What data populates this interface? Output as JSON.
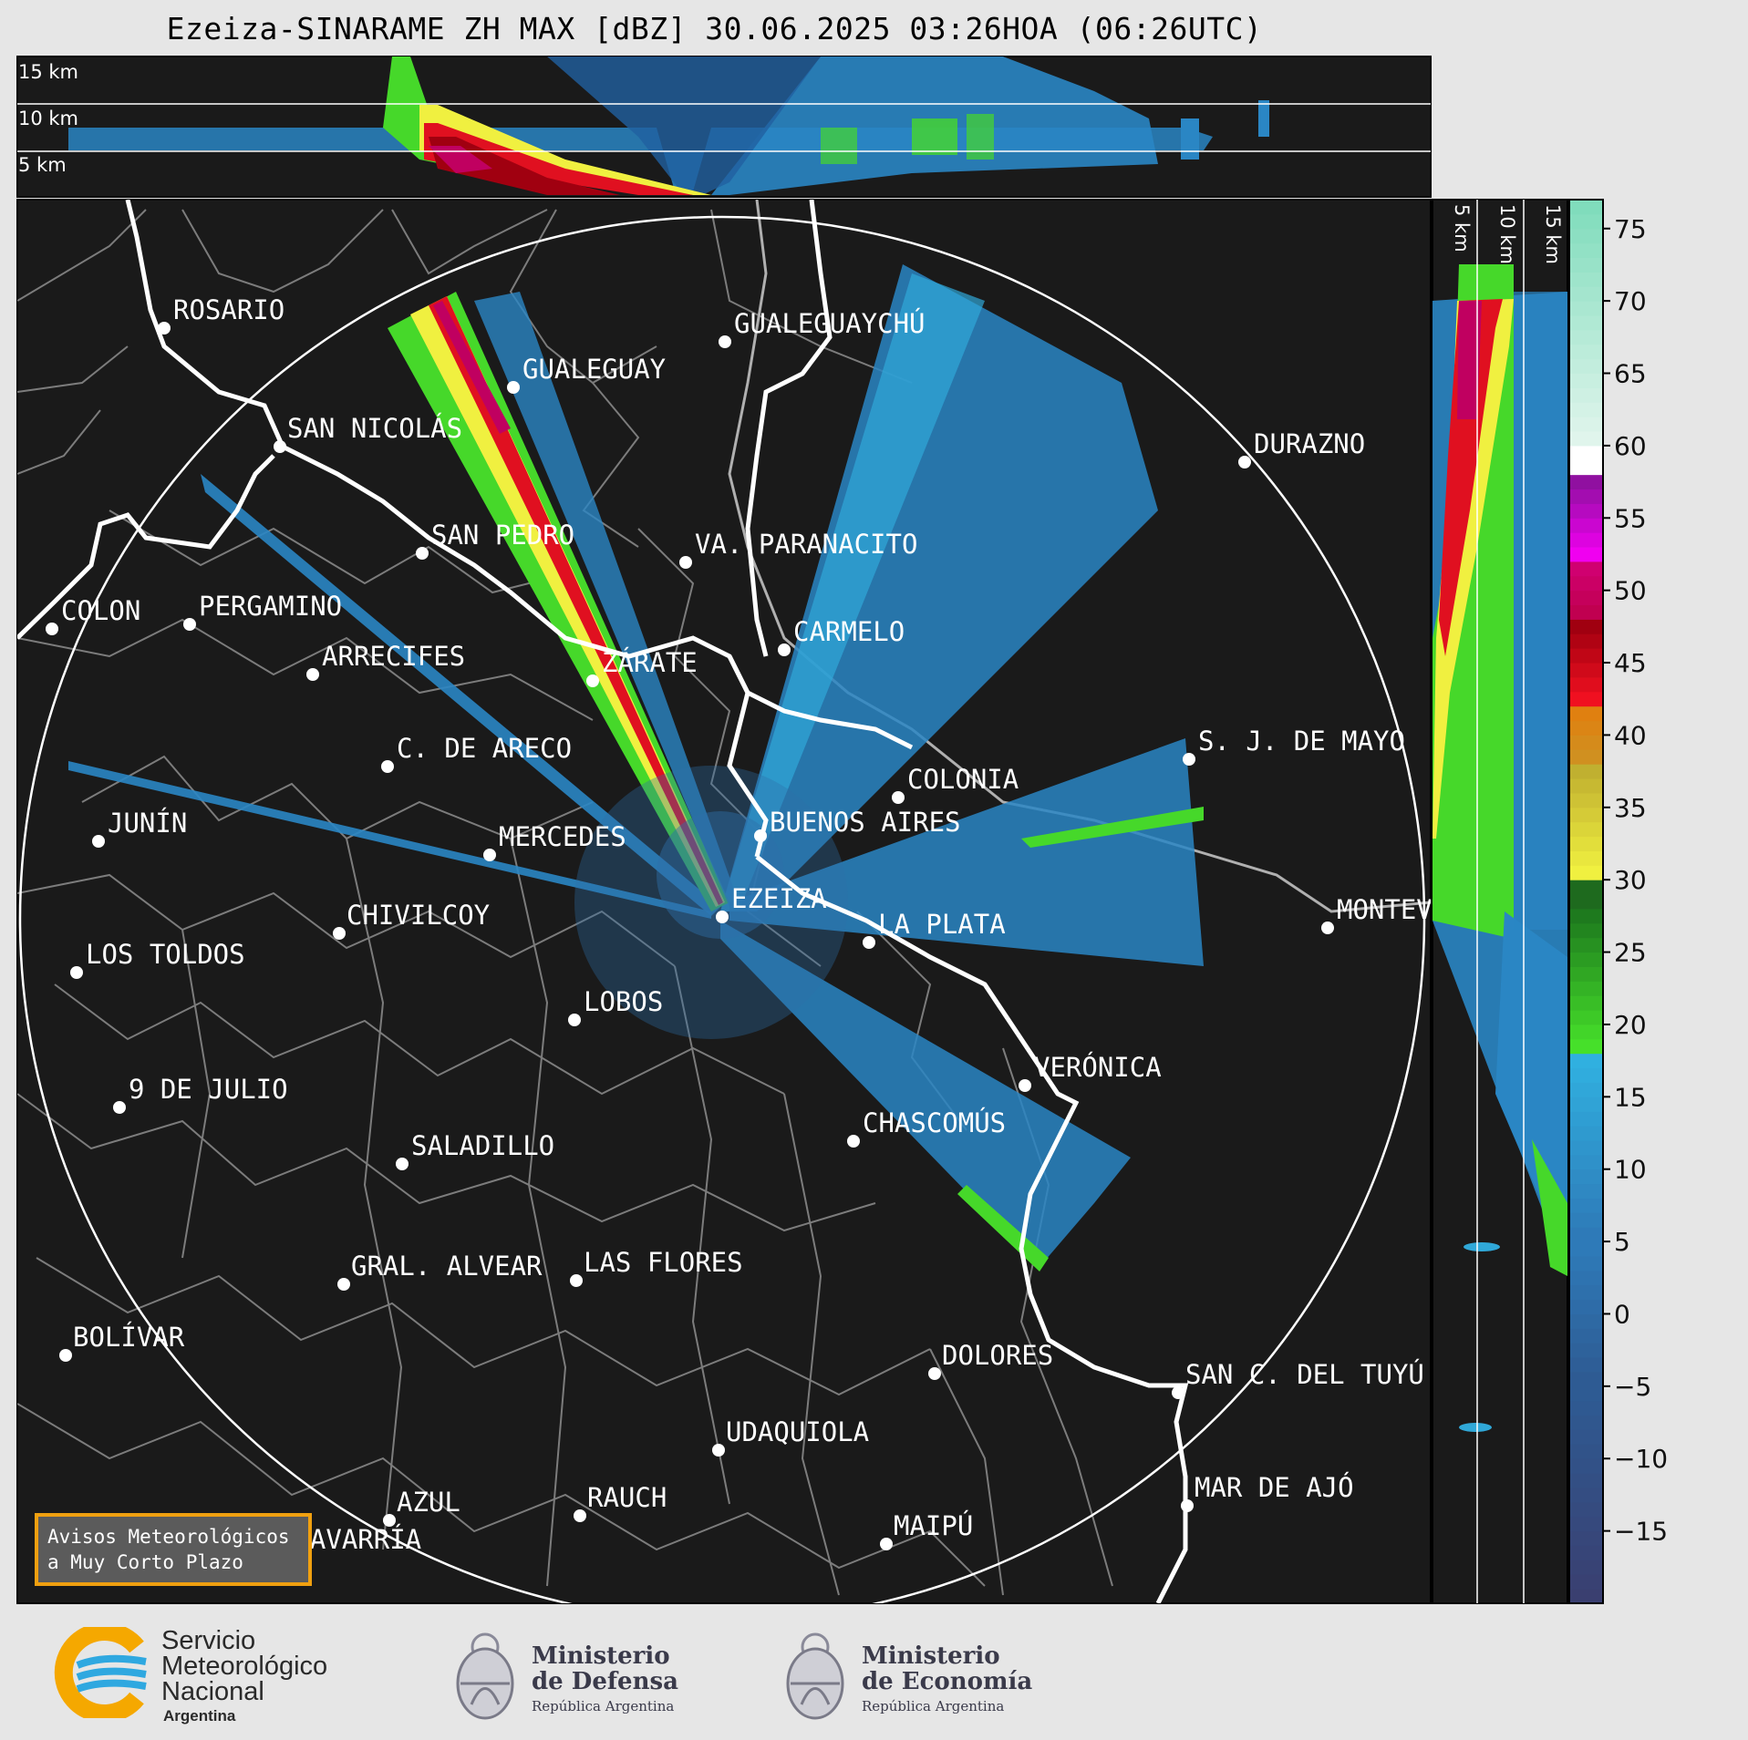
{
  "title": "Ezeiza-SINARAME ZH MAX [dBZ] 30.06.2025 03:26HOA (06:26UTC)",
  "top_panel": {
    "height_labels": [
      "15 km",
      "10 km",
      "5 km"
    ]
  },
  "side_panel": {
    "height_labels": [
      "5 km",
      "10 km",
      "15 km"
    ]
  },
  "colorbar": {
    "ticks": [
      "75",
      "70",
      "65",
      "60",
      "55",
      "50",
      "45",
      "40",
      "35",
      "30",
      "25",
      "20",
      "15",
      "10",
      "5",
      "0",
      "−5",
      "−10",
      "−15"
    ],
    "colors": {
      "navy": "#3a3f70",
      "blue": "#2e6fa8",
      "cyan": "#30a8d8",
      "green": "#46d82a",
      "darkgreen": "#1e7a1e",
      "yellow": "#f0f040",
      "gold": "#d4a020",
      "orange": "#e08010",
      "red": "#e01020",
      "darkred": "#a00010",
      "magenta": "#f000f0",
      "purple": "#9010a0",
      "white": "#ffffff",
      "mint": "#90e0c0"
    }
  },
  "cities": [
    {
      "name": "ROSARIO"
    },
    {
      "name": "GUALEGUAYCHÚ"
    },
    {
      "name": "GUALEGUAY"
    },
    {
      "name": "SAN NICOLÁS"
    },
    {
      "name": "DURAZNO"
    },
    {
      "name": "SAN PEDRO"
    },
    {
      "name": "VA. PARANACITO"
    },
    {
      "name": "COLON"
    },
    {
      "name": "PERGAMINO"
    },
    {
      "name": "CARMELO"
    },
    {
      "name": "ARRECIFES"
    },
    {
      "name": "ZÁRATE"
    },
    {
      "name": "C. DE ARECO"
    },
    {
      "name": "S. J. DE MAYO"
    },
    {
      "name": "COLONIA"
    },
    {
      "name": "JUNÍN"
    },
    {
      "name": "BUENOS AIRES"
    },
    {
      "name": "MERCEDES"
    },
    {
      "name": "EZEIZA"
    },
    {
      "name": "MONTEV"
    },
    {
      "name": "CHIVILCOY"
    },
    {
      "name": "LA PLATA"
    },
    {
      "name": "LOS TOLDOS"
    },
    {
      "name": "LOBOS"
    },
    {
      "name": "VERÓNICA"
    },
    {
      "name": "9 DE JULIO"
    },
    {
      "name": "CHASCOMÚS"
    },
    {
      "name": "SALADILLO"
    },
    {
      "name": "GRAL. ALVEAR"
    },
    {
      "name": "LAS FLORES"
    },
    {
      "name": "BOLÍVAR"
    },
    {
      "name": "DOLORES"
    },
    {
      "name": "SAN C. DEL TUYÚ"
    },
    {
      "name": "UDAQUIOLA"
    },
    {
      "name": "MAR DE AJÓ"
    },
    {
      "name": "AZUL"
    },
    {
      "name": "RAUCH"
    },
    {
      "name": "MAIPÚ"
    },
    {
      "name": "OLAVARRÍA"
    }
  ],
  "alert_box": {
    "line1": "Avisos Meteorológicos",
    "line2": "a Muy Corto Plazo"
  },
  "logos": {
    "smn": {
      "line1": "Servicio",
      "line2": "Meteorológico",
      "line3": "Nacional",
      "line4": "Argentina"
    },
    "defensa": {
      "line1": "Ministerio",
      "line2": "de Defensa",
      "line3": "República Argentina"
    },
    "economia": {
      "line1": "Ministerio",
      "line2": "de Economía",
      "line3": "República Argentina"
    }
  }
}
